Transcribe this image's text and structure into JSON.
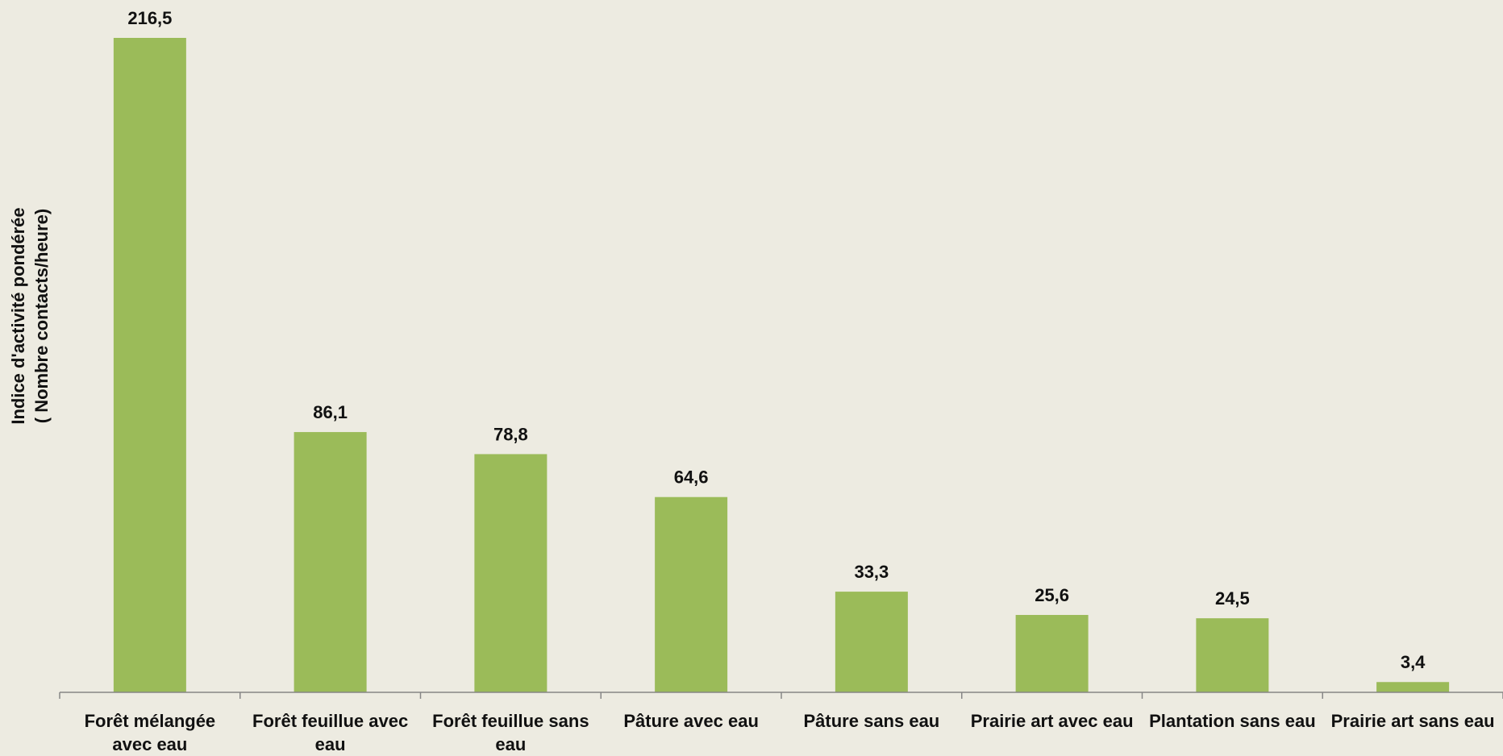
{
  "chart_data": {
    "type": "bar",
    "categories": [
      "Forêt mélangée avec eau",
      "Forêt feuillue avec eau",
      "Forêt feuillue sans eau",
      "Pâture avec eau",
      "Pâture sans eau",
      "Prairie art avec eau",
      "Plantation sans eau",
      "Prairie art sans eau"
    ],
    "category_lines": [
      [
        "Forêt mélangée",
        "avec eau"
      ],
      [
        "Forêt feuillue avec",
        "eau"
      ],
      [
        "Forêt feuillue sans",
        "eau"
      ],
      [
        "Pâture avec eau"
      ],
      [
        "Pâture sans eau"
      ],
      [
        "Prairie art avec eau"
      ],
      [
        "Plantation sans eau"
      ],
      [
        "Prairie art sans eau"
      ]
    ],
    "values": [
      216.5,
      86.1,
      78.8,
      64.6,
      33.3,
      25.6,
      24.5,
      3.4
    ],
    "value_labels": [
      "216,5",
      "86,1",
      "78,8",
      "64,6",
      "33,3",
      "25,6",
      "24,5",
      "3,4"
    ],
    "ylabel_lines": [
      "Indice d'activité pondérée",
      "( Nombre contacts/heure)"
    ],
    "xlabel": "",
    "ylim": [
      0,
      216.5
    ],
    "grid": false,
    "legend": "none",
    "bar_color": "#9bbb59",
    "axis_color": "#868686"
  }
}
